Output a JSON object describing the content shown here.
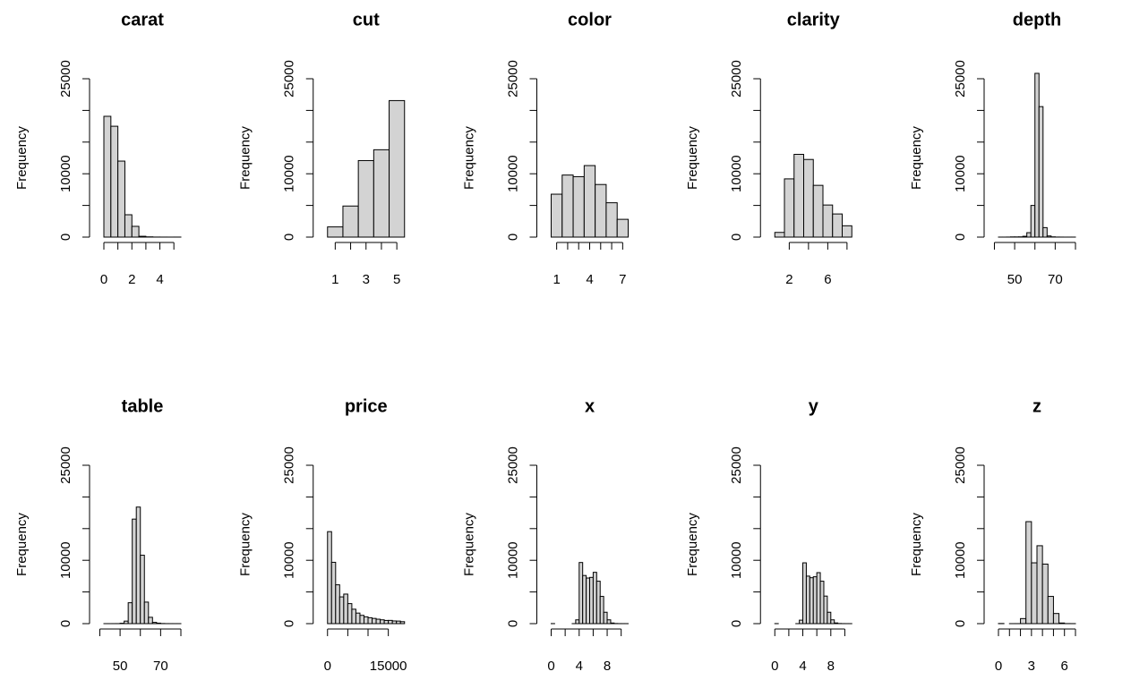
{
  "chart_data": [
    {
      "type": "histogram",
      "title": "carat",
      "ylabel": "Frequency",
      "color": "#d3d3d3",
      "bins": [
        0,
        0.5,
        1,
        1.5,
        2,
        2.5,
        3,
        3.5,
        4,
        4.5,
        5,
        5.5
      ],
      "counts": [
        19070,
        17500,
        12000,
        3530,
        1700,
        130,
        40,
        10,
        5,
        3,
        5
      ],
      "xlim": [
        0,
        5.5
      ],
      "xticks": [
        0,
        2,
        4
      ],
      "xminor": [
        1,
        3,
        5
      ],
      "ylim": [
        0,
        25000
      ],
      "yticks": [
        0,
        10000,
        25000
      ],
      "yminor": [
        5000,
        15000,
        20000
      ]
    },
    {
      "type": "histogram",
      "title": "cut",
      "ylabel": "Frequency",
      "color": "#d3d3d3",
      "bins": [
        0.5,
        1.5,
        2.5,
        3.5,
        4.5,
        5.5
      ],
      "counts": [
        1610,
        4906,
        12082,
        13791,
        21551
      ],
      "xlim": [
        0.5,
        5.5
      ],
      "xticks": [
        1,
        3,
        5
      ],
      "xminor": [
        2,
        4
      ],
      "ylim": [
        0,
        25000
      ],
      "yticks": [
        0,
        10000,
        25000
      ],
      "yminor": [
        5000,
        15000,
        20000
      ]
    },
    {
      "type": "histogram",
      "title": "color",
      "ylabel": "Frequency",
      "color": "#d3d3d3",
      "bins": [
        0.5,
        1.5,
        2.5,
        3.5,
        4.5,
        5.5,
        6.5,
        7.5
      ],
      "counts": [
        6775,
        9797,
        9542,
        11292,
        8304,
        5422,
        2808
      ],
      "xlim": [
        0.5,
        7.5
      ],
      "xticks": [
        1,
        4,
        7
      ],
      "xminor": [
        2,
        3,
        5,
        6
      ],
      "ylim": [
        0,
        25000
      ],
      "yticks": [
        0,
        10000,
        25000
      ],
      "yminor": [
        5000,
        15000,
        20000
      ]
    },
    {
      "type": "histogram",
      "title": "clarity",
      "ylabel": "Frequency",
      "color": "#d3d3d3",
      "bins": [
        0.5,
        1.5,
        2.5,
        3.5,
        4.5,
        5.5,
        6.5,
        7.5,
        8.5
      ],
      "counts": [
        741,
        9194,
        13065,
        12258,
        8171,
        5066,
        3655,
        1790
      ],
      "xlim": [
        0.5,
        8.5
      ],
      "xticks": [
        2,
        6
      ],
      "xminor": [
        4,
        8
      ],
      "ylim": [
        0,
        25000
      ],
      "yticks": [
        0,
        10000,
        25000
      ],
      "yminor": [
        5000,
        15000,
        20000
      ]
    },
    {
      "type": "histogram",
      "title": "depth",
      "ylabel": "Frequency",
      "color": "#d3d3d3",
      "bins": [
        42,
        44,
        46,
        48,
        50,
        52,
        54,
        56,
        58,
        60,
        62,
        64,
        66,
        68,
        70,
        72,
        74,
        76,
        78,
        80
      ],
      "counts": [
        2,
        2,
        10,
        30,
        30,
        40,
        130,
        700,
        5000,
        25850,
        20600,
        1500,
        180,
        40,
        10,
        5,
        1,
        2,
        2
      ],
      "xlim": [
        42,
        80
      ],
      "xticks": [
        50,
        70
      ],
      "xminor": [
        40,
        60,
        80
      ],
      "ylim": [
        0,
        25000
      ],
      "yticks": [
        0,
        10000,
        25000
      ],
      "yminor": [
        5000,
        15000,
        20000
      ]
    },
    {
      "type": "histogram",
      "title": "table",
      "ylabel": "Frequency",
      "color": "#d3d3d3",
      "bins": [
        42,
        44,
        46,
        48,
        50,
        52,
        54,
        56,
        58,
        60,
        62,
        64,
        66,
        68,
        70,
        72,
        74,
        76,
        78,
        80
      ],
      "counts": [
        1,
        1,
        3,
        5,
        60,
        400,
        3300,
        16500,
        18400,
        10800,
        3400,
        1000,
        200,
        80,
        20,
        5,
        3,
        2,
        2
      ],
      "xlim": [
        42,
        80
      ],
      "xticks": [
        50,
        70
      ],
      "xminor": [
        40,
        60,
        80
      ],
      "ylim": [
        0,
        25000
      ],
      "yticks": [
        0,
        10000,
        25000
      ],
      "yminor": [
        5000,
        15000,
        20000
      ]
    },
    {
      "type": "histogram",
      "title": "price",
      "ylabel": "Frequency",
      "color": "#d3d3d3",
      "bins": [
        0,
        1000,
        2000,
        3000,
        4000,
        5000,
        6000,
        7000,
        8000,
        9000,
        10000,
        11000,
        12000,
        13000,
        14000,
        15000,
        16000,
        17000,
        18000,
        19000
      ],
      "counts": [
        14524,
        9683,
        6129,
        4225,
        4665,
        3163,
        2278,
        1668,
        1307,
        1076,
        934,
        825,
        701,
        603,
        504,
        513,
        425,
        405,
        312
      ],
      "xlim": [
        0,
        19000
      ],
      "xticks": [
        0,
        15000
      ],
      "xminor": [
        5000,
        10000
      ],
      "ylim": [
        0,
        25000
      ],
      "yticks": [
        0,
        10000,
        25000
      ],
      "yminor": [
        5000,
        15000,
        20000
      ]
    },
    {
      "type": "histogram",
      "title": "x",
      "ylabel": "Frequency",
      "color": "#d3d3d3",
      "bins": [
        0,
        0.5,
        1,
        1.5,
        2,
        2.5,
        3,
        3.5,
        4,
        4.5,
        5,
        5.5,
        6,
        6.5,
        7,
        7.5,
        8,
        8.5,
        9,
        9.5,
        10,
        10.5,
        11
      ],
      "counts": [
        8,
        0,
        0,
        0,
        0,
        0,
        3,
        600,
        9650,
        7600,
        7200,
        7300,
        8100,
        6700,
        4300,
        1800,
        600,
        100,
        20,
        5,
        3,
        2
      ],
      "xlim": [
        0,
        11
      ],
      "xticks": [
        0,
        4,
        8
      ],
      "xminor": [
        2,
        6,
        10
      ],
      "ylim": [
        0,
        25000
      ],
      "yticks": [
        0,
        10000,
        25000
      ],
      "yminor": [
        5000,
        15000,
        20000
      ]
    },
    {
      "type": "histogram",
      "title": "y",
      "ylabel": "Frequency",
      "color": "#d3d3d3",
      "bins": [
        0,
        0.5,
        1,
        1.5,
        2,
        2.5,
        3,
        3.5,
        4,
        4.5,
        5,
        5.5,
        6,
        6.5,
        7,
        7.5,
        8,
        8.5,
        9,
        9.5,
        10,
        10.5,
        11
      ],
      "counts": [
        7,
        0,
        0,
        0,
        0,
        0,
        2,
        550,
        9600,
        7500,
        7250,
        7400,
        8050,
        6700,
        4350,
        1800,
        600,
        110,
        20,
        6,
        3,
        2
      ],
      "xlim": [
        0,
        11
      ],
      "xticks": [
        0,
        4,
        8
      ],
      "xminor": [
        2,
        6,
        10
      ],
      "ylim": [
        0,
        25000
      ],
      "yticks": [
        0,
        10000,
        25000
      ],
      "yminor": [
        5000,
        15000,
        20000
      ]
    },
    {
      "type": "histogram",
      "title": "z",
      "ylabel": "Frequency",
      "color": "#d3d3d3",
      "bins": [
        0,
        0.5,
        1,
        1.5,
        2,
        2.5,
        3,
        3.5,
        4,
        4.5,
        5,
        5.5,
        6,
        6.5,
        7
      ],
      "counts": [
        20,
        0,
        1,
        3,
        800,
        16100,
        9600,
        12300,
        9400,
        4300,
        1600,
        100,
        10,
        5
      ],
      "xlim": [
        0,
        7
      ],
      "xticks": [
        0,
        3,
        6
      ],
      "xminor": [
        1,
        2,
        4,
        5,
        7
      ],
      "ylim": [
        0,
        25000
      ],
      "yticks": [
        0,
        10000,
        25000
      ],
      "yminor": [
        5000,
        15000,
        20000
      ]
    }
  ]
}
